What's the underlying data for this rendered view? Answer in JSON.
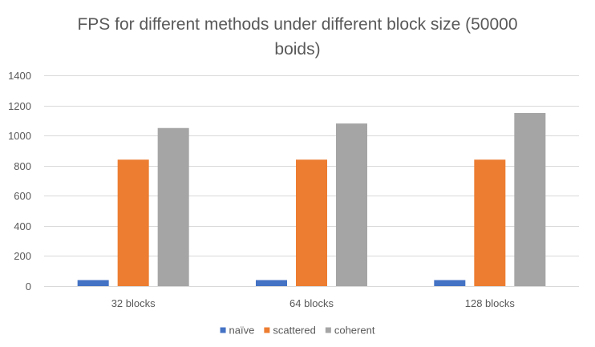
{
  "chart_data": {
    "type": "bar",
    "title_lines": [
      "FPS for different methods under different block size (50000",
      "boids)"
    ],
    "categories": [
      "32 blocks",
      "64 blocks",
      "128 blocks"
    ],
    "series": [
      {
        "name": "naïve",
        "values": [
          40,
          40,
          40
        ],
        "color": "#4472C4"
      },
      {
        "name": "scattered",
        "values": [
          840,
          840,
          840
        ],
        "color": "#ED7D31"
      },
      {
        "name": "coherent",
        "values": [
          1050,
          1080,
          1150
        ],
        "color": "#A5A5A5"
      }
    ],
    "ylim": [
      0,
      1400
    ],
    "yticks": [
      0,
      200,
      400,
      600,
      800,
      1000,
      1200,
      1400
    ],
    "grid": true,
    "legend_position": "bottom",
    "axis_color": "#D9D9D9",
    "grid_color": "#D9D9D9",
    "text_color": "#595959"
  }
}
